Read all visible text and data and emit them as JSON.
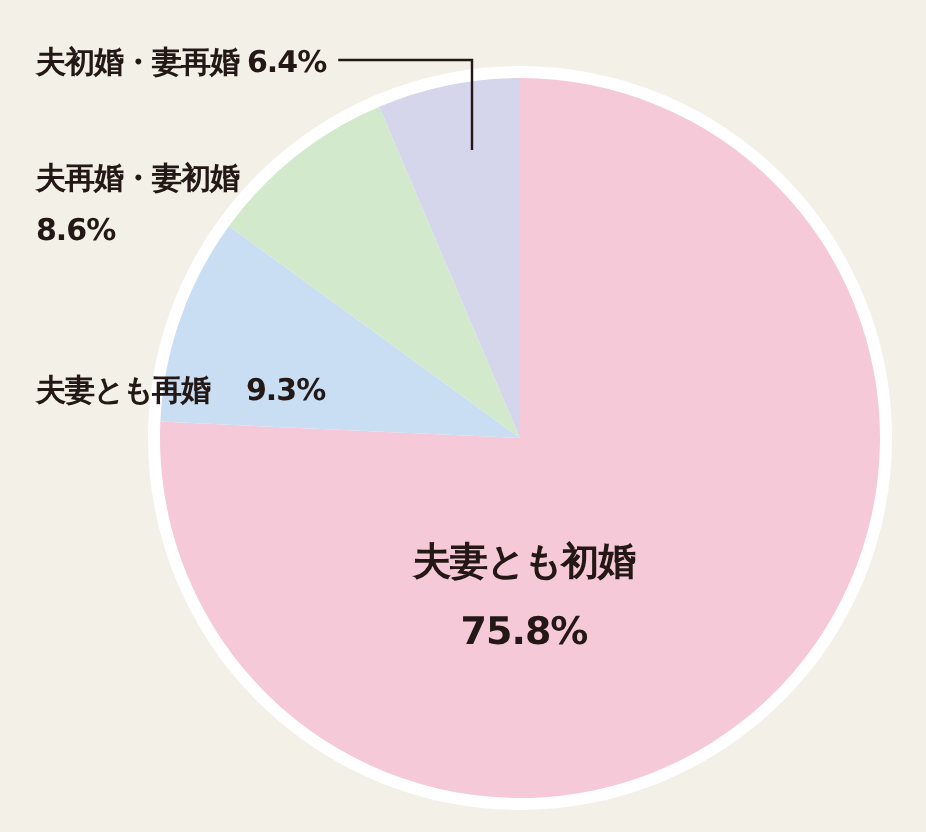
{
  "chart_data": {
    "type": "pie",
    "categories": [
      "夫妻とも初婚",
      "夫妻とも再婚",
      "夫再婚・妻初婚",
      "夫初婚・妻再婚"
    ],
    "values": [
      75.8,
      9.3,
      8.6,
      6.4
    ],
    "colors": [
      "#f6c9d8",
      "#c9def2",
      "#d3e9cc",
      "#d5d5ec"
    ],
    "value_labels": [
      "75.8%",
      "9.3%",
      "8.6%",
      "6.4%"
    ],
    "legend": false
  }
}
